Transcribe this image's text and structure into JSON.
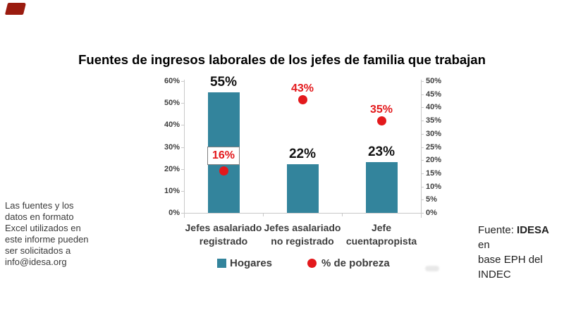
{
  "chart_data": {
    "type": "bar",
    "title": "Fuentes de ingresos laborales de los jefes de familia que trabajan",
    "categories": [
      "Jefes asalariado\nregistrado",
      "Jefes asalariado\nno registrado",
      "Jefe\ncuentapropista"
    ],
    "series": [
      {
        "name": "Hogares",
        "type": "bar",
        "axis": "left",
        "values": [
          55,
          22,
          23
        ],
        "labels": [
          "55%",
          "22%",
          "23%"
        ]
      },
      {
        "name": "% de pobreza",
        "type": "scatter",
        "axis": "right",
        "values": [
          16,
          43,
          35
        ],
        "labels": [
          "16%",
          "43%",
          "35%"
        ],
        "label_boxed": [
          true,
          false,
          false
        ]
      }
    ],
    "left_axis": {
      "min": 0,
      "max": 60,
      "step": 10,
      "ticks": [
        "0%",
        "10%",
        "20%",
        "30%",
        "40%",
        "50%",
        "60%"
      ]
    },
    "right_axis": {
      "min": 0,
      "max": 50,
      "step": 5,
      "ticks": [
        "0%",
        "5%",
        "10%",
        "15%",
        "20%",
        "25%",
        "30%",
        "35%",
        "40%",
        "45%",
        "50%"
      ]
    },
    "legend": [
      "Hogares",
      "% de pobreza"
    ],
    "legend_position": "bottom",
    "grid": false
  },
  "left_note": {
    "lines": [
      "Las fuentes y los",
      "datos en formato",
      "Excel utilizados en",
      "este informe pueden",
      "ser solicitados a",
      "info@idesa.org"
    ]
  },
  "source_note": {
    "prefix": "Fuente: ",
    "bold": "IDESA",
    "suffix": " en",
    "lines": [
      "base EPH del",
      "INDEC"
    ]
  },
  "colors": {
    "bar": "#33849C",
    "marker": "#E3191C",
    "red_label": "#E3191C",
    "ribbon": "#9A1B0F"
  }
}
